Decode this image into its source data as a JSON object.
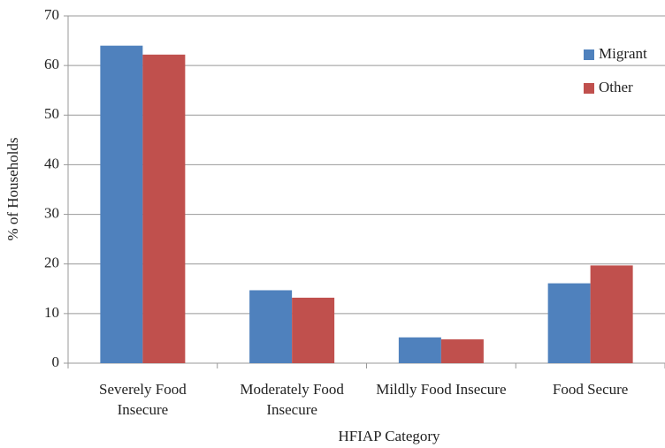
{
  "chart_data": {
    "type": "bar",
    "x_label": "HFIAP Category",
    "y_label": "% of Households",
    "categories": [
      "Severely Food Insecure",
      "Moderately Food Insecure",
      "Mildly Food Insecure",
      "Food Secure"
    ],
    "series": [
      {
        "name": "Migrant",
        "color": "#4f81bd",
        "values": [
          64,
          14.7,
          5.2,
          16.1
        ]
      },
      {
        "name": "Other",
        "color": "#c0504d",
        "values": [
          62.2,
          13.2,
          4.8,
          19.7
        ]
      }
    ],
    "ylim": [
      0,
      70
    ],
    "yticks": [
      0,
      10,
      20,
      30,
      40,
      50,
      60,
      70
    ],
    "grid": true,
    "legend": "top-right"
  }
}
